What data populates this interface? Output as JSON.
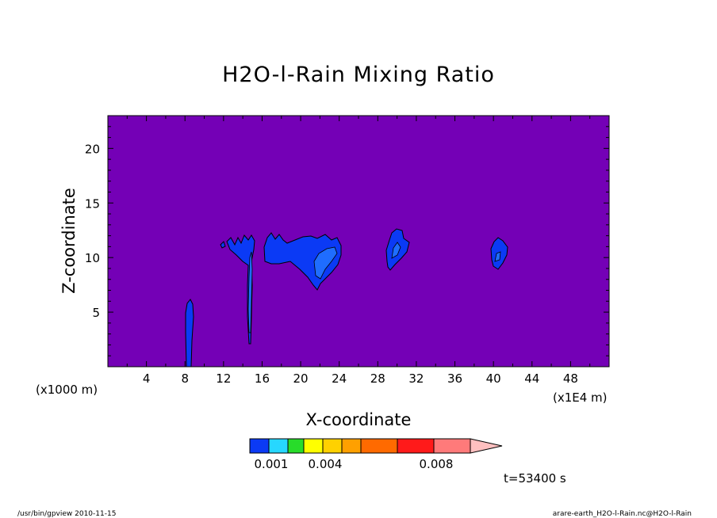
{
  "chart_data": {
    "type": "heatmap",
    "title": "H2O-l-Rain Mixing Ratio",
    "xlabel": "X-coordinate",
    "ylabel": "Z-coordinate",
    "x_unit_left": "(x1000 m)",
    "x_unit_right": "(x1E4 m)",
    "xlim": [
      0,
      52
    ],
    "ylim": [
      0,
      23
    ],
    "xticks": [
      4,
      8,
      12,
      16,
      20,
      24,
      28,
      32,
      36,
      40,
      44,
      48
    ],
    "yticks": [
      5,
      10,
      15,
      20
    ],
    "grid": false,
    "background_color": "#7400b6",
    "colorbar": {
      "colors": [
        "#0b3af5",
        "#27d7ff",
        "#28dc2a",
        "#ffff00",
        "#ffd100",
        "#ffa000",
        "#ff6a00",
        "#ff1a1a",
        "#ff7a7a",
        "#ffc0c0"
      ],
      "labels": [
        {
          "text": "0.001",
          "value": 0.001
        },
        {
          "text": "0.004",
          "value": 0.004
        },
        {
          "text": "0.008",
          "value": 0.008
        }
      ],
      "bins_min": 0.0,
      "bins_step": 0.001,
      "over_arrow": true
    },
    "features": [
      {
        "name": "narrow column",
        "x_range": [
          8.0,
          9.0
        ],
        "z_range": [
          0,
          6.2
        ],
        "level": 1
      },
      {
        "name": "column with anvil",
        "x_range": [
          11.5,
          15.5
        ],
        "z_range": [
          2.0,
          12.0
        ],
        "level": 1
      },
      {
        "name": "main cloud",
        "x_range": [
          16.0,
          24.0
        ],
        "z_range": [
          7.0,
          12.3
        ],
        "level": 2
      },
      {
        "name": "cloud 28-30",
        "x_range": [
          28.3,
          30.5
        ],
        "z_range": [
          8.7,
          12.5
        ],
        "level": 2
      },
      {
        "name": "cloud 39-41",
        "x_range": [
          38.7,
          40.8
        ],
        "z_range": [
          8.7,
          11.7
        ],
        "level": 2
      }
    ]
  },
  "annotations": {
    "time": "t=53400 s",
    "footer_left": "/usr/bin/gpview   2010-11-15",
    "footer_right": "arare-earth_H2O-l-Rain.nc@H2O-l-Rain"
  }
}
